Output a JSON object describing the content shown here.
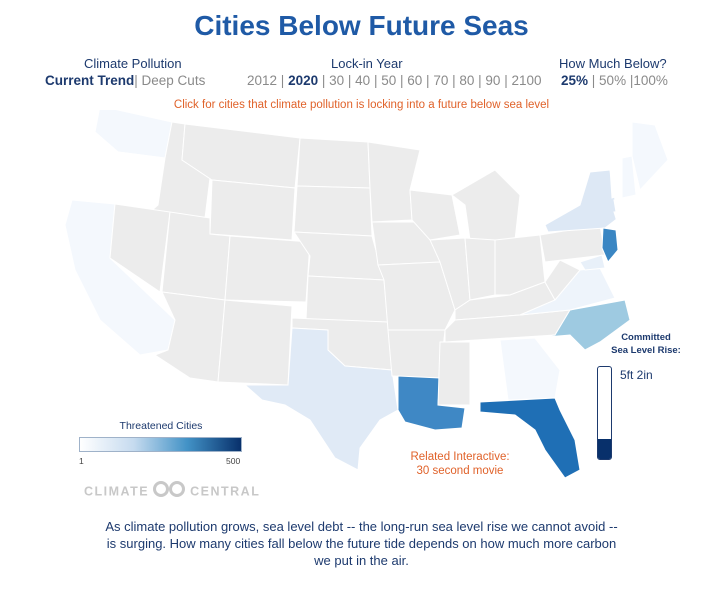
{
  "title": "Cities Below Future Seas",
  "controls": {
    "pollution": {
      "heading": "Climate Pollution",
      "options": [
        "Current Trend",
        "Deep Cuts"
      ],
      "selected": "Current Trend"
    },
    "lockin": {
      "heading": "Lock-in Year",
      "options": [
        "2012",
        "2020",
        "30",
        "40",
        "50",
        "60",
        "70",
        "80",
        "90",
        "2100"
      ],
      "selected": "2020"
    },
    "below": {
      "heading": "How Much Below?",
      "options": [
        "25%",
        "50%",
        "100%"
      ],
      "selected": "25%"
    }
  },
  "hint": "Click for cities that climate pollution is locking into a future below sea level",
  "legend": {
    "title": "Threatened Cities",
    "min": "1",
    "max": "500"
  },
  "brand": {
    "left": "CLIMATE",
    "right": "CENTRAL"
  },
  "related": {
    "line1": "Related Interactive:",
    "line2": "30 second movie"
  },
  "sea_level": {
    "title_line1": "Committed",
    "title_line2": "Sea Level Rise:",
    "value": "5ft 2in",
    "fill_fraction": 0.22
  },
  "description": "As climate pollution grows, sea level debt -- the long-run sea level rise we cannot avoid -- is surging. How many cities fall below the future tide depends on how much more carbon we put in the air.",
  "colors": {
    "land": "#ececec",
    "accent_title": "#1f5aa6",
    "accent_orange": "#e0622a",
    "scale": [
      "#ffffff",
      "#c6dbef",
      "#4292c6",
      "#08306b"
    ]
  }
}
